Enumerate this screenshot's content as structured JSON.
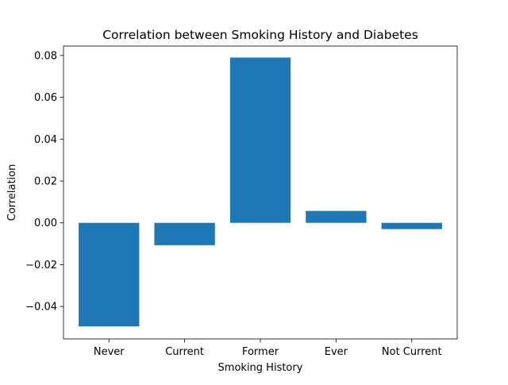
{
  "chart_data": {
    "type": "bar",
    "title": "Correlation between Smoking History and Diabetes",
    "xlabel": "Smoking History",
    "ylabel": "Correlation",
    "categories": [
      "Never",
      "Current",
      "Former",
      "Ever",
      "Not Current"
    ],
    "values": [
      -0.0495,
      -0.0107,
      0.079,
      0.0057,
      -0.003
    ],
    "ylim": [
      -0.0555,
      0.0845
    ],
    "yticks": [
      -0.04,
      -0.02,
      0.0,
      0.02,
      0.04,
      0.06,
      0.08
    ],
    "ytick_labels": [
      "−0.04",
      "−0.02",
      "0.00",
      "0.02",
      "0.04",
      "0.06",
      "0.08"
    ],
    "bar_color": "#1f77b4",
    "grid": false,
    "legend": "none"
  }
}
